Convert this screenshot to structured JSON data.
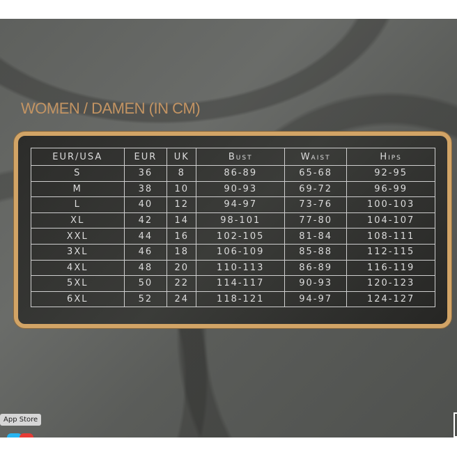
{
  "title": "WOMEN / DAMEN (IN CM)",
  "table": {
    "headers": [
      "EUR/USA",
      "EUR",
      "UK",
      "Bust",
      "Waist",
      "Hips"
    ],
    "rows": [
      [
        "S",
        "36",
        "8",
        "86-89",
        "65-68",
        "92-95"
      ],
      [
        "M",
        "38",
        "10",
        "90-93",
        "69-72",
        "96-99"
      ],
      [
        "L",
        "40",
        "12",
        "94-97",
        "73-76",
        "100-103"
      ],
      [
        "XL",
        "42",
        "14",
        "98-101",
        "77-80",
        "104-107"
      ],
      [
        "XXL",
        "44",
        "16",
        "102-105",
        "81-84",
        "108-111"
      ],
      [
        "3XL",
        "46",
        "18",
        "106-109",
        "85-88",
        "112-115"
      ],
      [
        "4XL",
        "48",
        "20",
        "110-113",
        "86-89",
        "116-119"
      ],
      [
        "5XL",
        "50",
        "22",
        "114-117",
        "90-93",
        "120-123"
      ],
      [
        "6XL",
        "52",
        "24",
        "118-121",
        "94-97",
        "124-127"
      ]
    ]
  },
  "dock": {
    "tooltip": "App Store",
    "icons": [
      "app-store-icon",
      "notification-icon"
    ]
  },
  "colors": {
    "accent": "#c39463",
    "frame": "#d2a466"
  }
}
